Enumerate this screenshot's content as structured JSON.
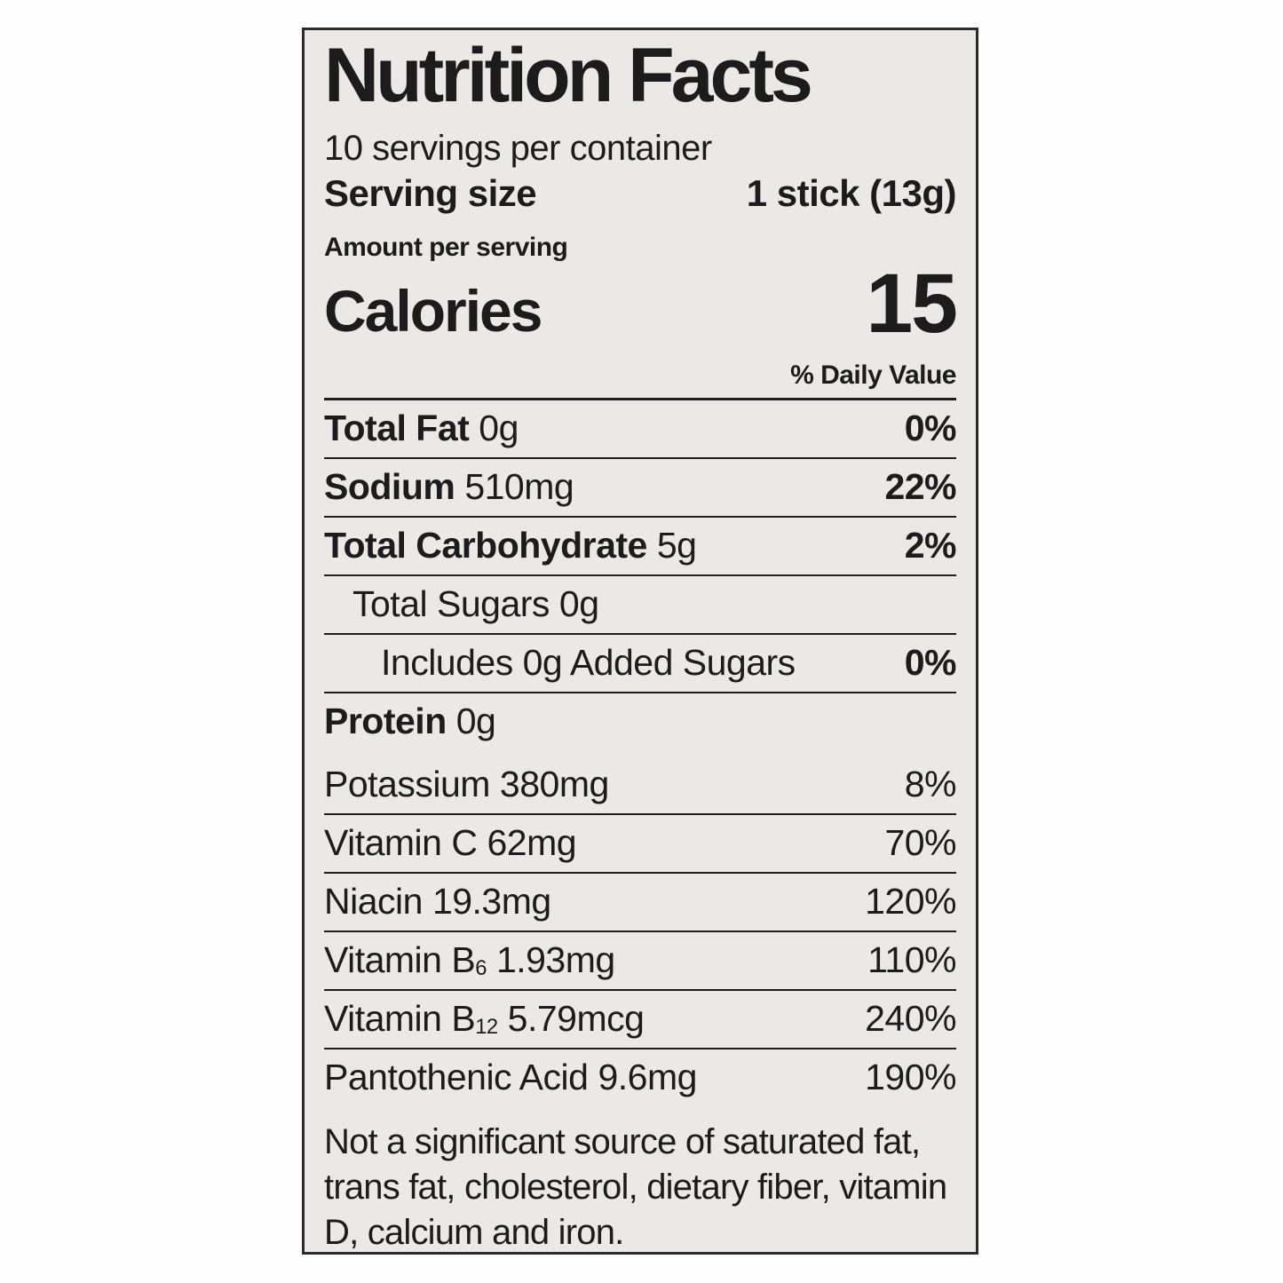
{
  "label": {
    "title": "Nutrition Facts",
    "servings_per_container": "10 servings per container",
    "serving_size_label": "Serving size",
    "serving_size_value": "1 stick (13g)",
    "amount_per_serving": "Amount per serving",
    "calories_label": "Calories",
    "calories_value": "15",
    "daily_value_header": "% Daily Value",
    "main_rows": [
      {
        "name": "Total Fat",
        "amount": "0g",
        "dv": "0%",
        "bold": true,
        "indent": 0
      },
      {
        "name": "Sodium",
        "amount": "510mg",
        "dv": "22%",
        "bold": true,
        "indent": 0
      },
      {
        "name": "Total Carbohydrate",
        "amount": "5g",
        "dv": "2%",
        "bold": true,
        "indent": 0
      },
      {
        "name": "Total Sugars",
        "amount": "0g",
        "dv": "",
        "bold": false,
        "indent": 1
      },
      {
        "name": "Includes 0g Added Sugars",
        "amount": "",
        "dv": "0%",
        "bold": false,
        "indent": 2
      },
      {
        "name": "Protein",
        "amount": "0g",
        "dv": "",
        "bold": true,
        "indent": 0
      }
    ],
    "micronutrient_rows": [
      {
        "name": "Potassium",
        "sub": "",
        "amount": "380mg",
        "dv": "8%"
      },
      {
        "name": "Vitamin C",
        "sub": "",
        "amount": "62mg",
        "dv": "70%"
      },
      {
        "name": "Niacin",
        "sub": "",
        "amount": "19.3mg",
        "dv": "120%"
      },
      {
        "name": "Vitamin B",
        "sub": "6",
        "amount": "1.93mg",
        "dv": "110%"
      },
      {
        "name": "Vitamin B",
        "sub": "12",
        "amount": "5.79mcg",
        "dv": "240%"
      },
      {
        "name": "Pantothenic Acid",
        "sub": "",
        "amount": "9.6mg",
        "dv": "190%"
      }
    ],
    "footnote": "Not a significant source of saturated fat, trans fat, cholesterol, dietary fiber, vitamin D, calcium and iron."
  },
  "colors": {
    "label_background": "#eae9e6",
    "text": "#1c1c1c",
    "rule": "#1f1f1f",
    "page_background": "#fdfdfd"
  }
}
